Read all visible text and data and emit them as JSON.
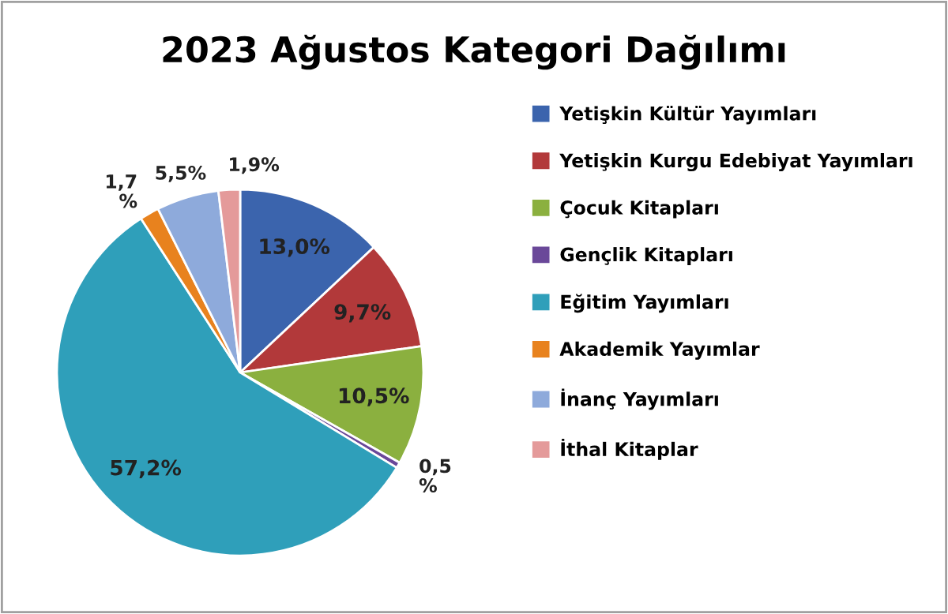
{
  "chart_data": {
    "type": "pie",
    "title": "2023 Ağustos Kategori Dağılımı",
    "categories": [
      "Yetişkin Kültür Yayımları",
      "Yetişkin Kurgu Edebiyat Yayımları",
      "Çocuk Kitapları",
      "Gençlik Kitapları",
      "Eğitim Yayımları",
      "Akademik Yayımlar",
      "İnanç Yayımları",
      "İthal Kitaplar"
    ],
    "values": [
      13.0,
      9.7,
      10.5,
      0.5,
      57.2,
      1.7,
      5.5,
      1.9
    ],
    "value_labels": [
      "13,0%",
      "9,7%",
      "10,5%",
      "0,5\n%",
      "57,2%",
      "1,7\n%",
      "5,5%",
      "1,9%"
    ],
    "colors": [
      "#3b64ad",
      "#b2393a",
      "#8bb03f",
      "#6a4899",
      "#2f9fba",
      "#e8821e",
      "#8eaadb",
      "#e49a9a"
    ],
    "legend": "right"
  }
}
